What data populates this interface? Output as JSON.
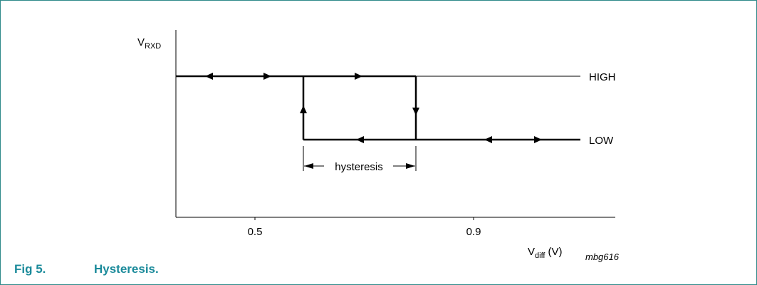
{
  "diagram": {
    "y_axis_label_main": "V",
    "y_axis_label_sub": "RXD",
    "x_axis_label_main": "V",
    "x_axis_label_sub": "diff",
    "x_axis_unit": "(V)",
    "code": "mbg616",
    "ticks": [
      "0.5",
      "0.9"
    ],
    "level_high": "HIGH",
    "level_low": "LOW",
    "hysteresis_label": "hysteresis"
  },
  "caption": {
    "number": "Fig 5.",
    "title": "Hysteresis."
  },
  "colors": {
    "caption": "#1a8a9a",
    "border": "#2f8a8a",
    "line": "#000000"
  }
}
